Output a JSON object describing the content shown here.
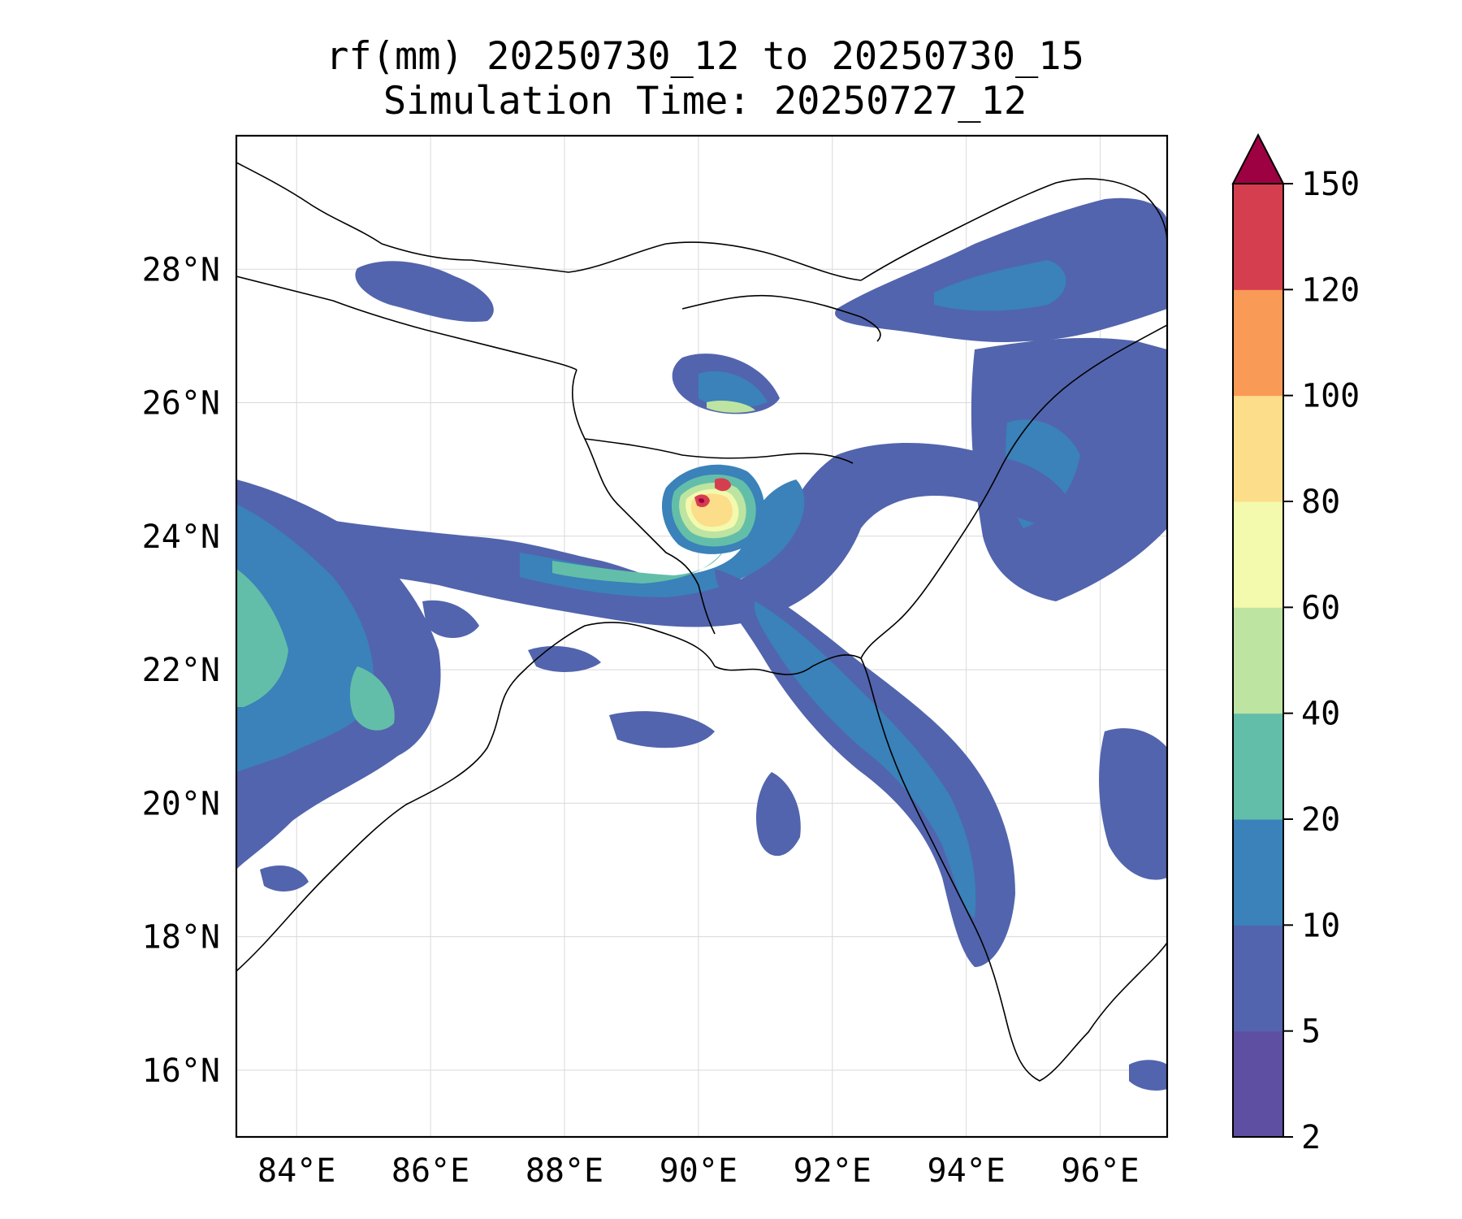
{
  "title": {
    "line1": "rf(mm) 20250730_12 to 20250730_15",
    "line2": "Simulation Time: 20250727_12"
  },
  "map": {
    "lon_range": [
      83.1,
      97.0
    ],
    "lat_range": [
      15.0,
      30.0
    ],
    "x_ticks": [
      "84°E",
      "86°E",
      "88°E",
      "90°E",
      "92°E",
      "94°E",
      "96°E"
    ],
    "y_ticks": [
      "16°N",
      "18°N",
      "20°N",
      "22°N",
      "24°N",
      "26°N",
      "28°N"
    ],
    "gridlines": true,
    "variable": "rf(mm)",
    "features": [
      {
        "name": "rainfall-maximum-core",
        "lon": 90.2,
        "lat": 24.6,
        "max_bin": "120-150"
      },
      {
        "name": "rain-band-bay-of-bengal-arm",
        "lon": 88.6,
        "lat": 23.6,
        "max_bin": "20-40"
      },
      {
        "name": "rain-band-arakan-coast",
        "lon": 93.8,
        "lat": 20.2,
        "max_bin": "10-20"
      },
      {
        "name": "rain-band-east-india-west",
        "lon": 84.2,
        "lat": 22.2,
        "max_bin": "20-40"
      },
      {
        "name": "rain-patches-himalaya",
        "lon": 89.0,
        "lat": 27.3,
        "max_bin": "5-10"
      }
    ]
  },
  "colorbar": {
    "ticks": [
      "2",
      "5",
      "10",
      "20",
      "40",
      "60",
      "80",
      "100",
      "120",
      "150"
    ],
    "colors": [
      "#5e4fa2",
      "#5264ad",
      "#3a82b9",
      "#63bea9",
      "#bde4a1",
      "#f3f9ad",
      "#fcdd8a",
      "#f99a57",
      "#d53e4f",
      "#9e0142"
    ],
    "extend": "max"
  }
}
